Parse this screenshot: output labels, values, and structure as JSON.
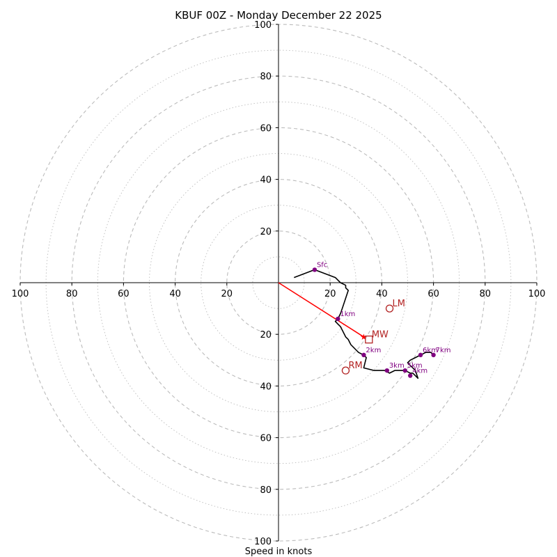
{
  "chart_data": {
    "type": "hodograph",
    "title": "KBUF 00Z - Monday December 22 2025",
    "xlabel": "Speed in knots",
    "max_radius": 100,
    "ring_step": 10,
    "tick_labels": [
      "100",
      "80",
      "60",
      "40",
      "20",
      "20",
      "40",
      "60",
      "80",
      "100"
    ],
    "axis_tick_values": [
      -100,
      -80,
      -60,
      -40,
      -20,
      20,
      40,
      60,
      80,
      100
    ],
    "colors": {
      "trace": "#000000",
      "levels": "#800080",
      "motion": "#b22222",
      "vector": "#ff0000",
      "grid": "#bbbbbb"
    },
    "trace": [
      [
        6,
        2
      ],
      [
        14,
        5
      ],
      [
        22,
        2
      ],
      [
        23,
        1
      ],
      [
        24,
        0
      ],
      [
        26,
        -1
      ],
      [
        26,
        -2
      ],
      [
        27,
        -3
      ],
      [
        26,
        -6
      ],
      [
        25,
        -9
      ],
      [
        24,
        -12
      ],
      [
        23,
        -14
      ],
      [
        22,
        -15
      ],
      [
        23,
        -16
      ],
      [
        24,
        -17
      ],
      [
        25,
        -19
      ],
      [
        26,
        -21
      ],
      [
        27,
        -22
      ],
      [
        28,
        -24
      ],
      [
        30,
        -26
      ],
      [
        31,
        -27
      ],
      [
        33,
        -28
      ],
      [
        34,
        -29
      ],
      [
        33,
        -33
      ],
      [
        37,
        -34
      ],
      [
        41,
        -34
      ],
      [
        43,
        -35
      ],
      [
        45,
        -34
      ],
      [
        47,
        -34
      ],
      [
        49,
        -34
      ],
      [
        51,
        -35
      ],
      [
        52,
        -35
      ],
      [
        54,
        -37
      ],
      [
        53,
        -34
      ],
      [
        51,
        -32
      ],
      [
        50,
        -31
      ],
      [
        51,
        -30
      ],
      [
        53,
        -29
      ],
      [
        55,
        -28
      ],
      [
        57,
        -27
      ],
      [
        59,
        -27
      ],
      [
        60,
        -28
      ]
    ],
    "levels": [
      {
        "label": "Sfc",
        "u": 14,
        "v": 5
      },
      {
        "label": "1km",
        "u": 23,
        "v": -14
      },
      {
        "label": "2km",
        "u": 33,
        "v": -28
      },
      {
        "label": "3km",
        "u": 42,
        "v": -34
      },
      {
        "label": "4km",
        "u": 51,
        "v": -36
      },
      {
        "label": "5km",
        "u": 49,
        "v": -34
      },
      {
        "label": "6km",
        "u": 55,
        "v": -28
      },
      {
        "label": "7km",
        "u": 60,
        "v": -28
      }
    ],
    "motions": [
      {
        "label": "LM",
        "u": 43,
        "v": -10,
        "marker": "circle"
      },
      {
        "label": "MW",
        "u": 35,
        "v": -22,
        "marker": "square"
      },
      {
        "label": "RM",
        "u": 26,
        "v": -34,
        "marker": "circle"
      }
    ],
    "shear_vector": {
      "u": 33,
      "v": -21
    }
  }
}
